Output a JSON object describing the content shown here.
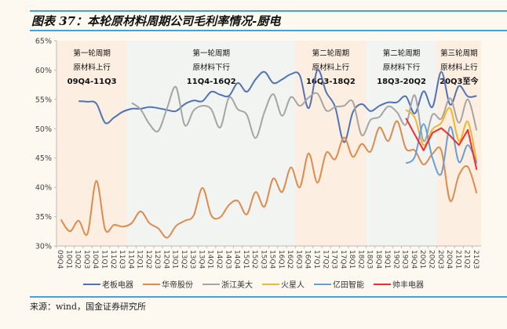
{
  "title": "图表 37：本轮原材料周期公司毛利率情况-厨电",
  "source": "来源：wind，国金证券研究所",
  "colors": {
    "rule": "#3aa6dc",
    "band_up": "#fcefe2",
    "band_down": "#f1f4f0"
  },
  "chart_data": {
    "type": "line",
    "title": "",
    "xlabel": "",
    "ylabel": "",
    "ylim": [
      30,
      65
    ],
    "yticks": [
      "30%",
      "35%",
      "40%",
      "45%",
      "50%",
      "55%",
      "60%",
      "65%"
    ],
    "grid": false,
    "legend": "bottom",
    "categories": [
      "09Q4",
      "10Q1",
      "10Q2",
      "10Q3",
      "10Q4",
      "11Q1",
      "11Q2",
      "11Q3",
      "11Q4",
      "12Q1",
      "12Q2",
      "12Q3",
      "12Q4",
      "13Q1",
      "13Q2",
      "13Q3",
      "13Q4",
      "14Q1",
      "14Q2",
      "14Q3",
      "14Q4",
      "15Q1",
      "15Q2",
      "15Q3",
      "15Q4",
      "16Q1",
      "16Q2",
      "16Q3",
      "16Q4",
      "17Q1",
      "17Q2",
      "17Q3",
      "17Q4",
      "18Q1",
      "18Q2",
      "18Q3",
      "18Q4",
      "19Q1",
      "19Q2",
      "19Q3",
      "19Q4",
      "20Q1",
      "20Q2",
      "20Q3",
      "20Q4",
      "21Q1",
      "21Q2",
      "21Q3"
    ],
    "bands": [
      {
        "lines": [
          "第一轮周期",
          "原材料上行",
          "09Q4-11Q3"
        ],
        "from": "09Q4",
        "to": "11Q3",
        "kind": "up"
      },
      {
        "lines": [
          "第一轮周期",
          "原材料下行",
          "11Q4-16Q2"
        ],
        "from": "11Q4",
        "to": "16Q2",
        "kind": "down"
      },
      {
        "lines": [
          "第二轮周期",
          "原材料上行",
          "16Q3-18Q2"
        ],
        "from": "16Q3",
        "to": "18Q2",
        "kind": "up"
      },
      {
        "lines": [
          "第二轮周期",
          "原材料下行",
          "18Q3-20Q2"
        ],
        "from": "18Q3",
        "to": "20Q2",
        "kind": "down"
      },
      {
        "lines": [
          "第三轮周期",
          "原材料上行",
          "20Q3至今"
        ],
        "from": "20Q3",
        "to": "21Q3",
        "kind": "up"
      }
    ],
    "series": [
      {
        "name": "老板电器",
        "color": "#4f72b8",
        "smooth": true,
        "values": [
          null,
          null,
          54.7,
          54.6,
          54.3,
          51.0,
          51.9,
          52.9,
          53.4,
          53.4,
          53.7,
          53.5,
          53.2,
          53.0,
          54.2,
          54.8,
          54.7,
          56.3,
          55.8,
          55.6,
          57.8,
          56.3,
          58.4,
          59.7,
          57.8,
          58.4,
          59.3,
          59.1,
          53.5,
          60.0,
          56.2,
          53.7,
          47.7,
          52.8,
          54.2,
          53.0,
          53.9,
          54.5,
          54.5,
          55.5,
          52.6,
          56.4,
          53.7,
          59.7,
          54.1,
          57.3,
          55.5,
          55.6
        ]
      },
      {
        "name": "华帝股份",
        "color": "#e08a4c",
        "smooth": true,
        "values": [
          34.5,
          32.5,
          34.3,
          32.1,
          41.1,
          32.8,
          33.6,
          33.3,
          33.9,
          35.9,
          33.9,
          33.0,
          31.4,
          33.4,
          34.3,
          35.2,
          39.9,
          35.2,
          34.9,
          37.0,
          37.7,
          35.4,
          39.2,
          36.7,
          41.5,
          39.2,
          43.4,
          40.0,
          45.8,
          40.8,
          45.9,
          44.8,
          48.5,
          45.2,
          47.4,
          46.1,
          50.2,
          47.9,
          51.3,
          46.6,
          46.3,
          43.9,
          45.7,
          46.3,
          37.7,
          42.1,
          43.5,
          39.0
        ]
      },
      {
        "name": "浙江美大",
        "color": "#a5a5a5",
        "smooth": true,
        "values": [
          null,
          null,
          null,
          null,
          null,
          null,
          null,
          null,
          54.4,
          53.3,
          50.8,
          49.6,
          53.5,
          57.1,
          50.6,
          53.1,
          53.9,
          53.3,
          50.2,
          55.3,
          53.3,
          52.4,
          48.4,
          52.8,
          55.9,
          52.2,
          55.4,
          53.9,
          55.3,
          56.0,
          53.1,
          53.7,
          53.9,
          54.6,
          48.9,
          51.5,
          52.0,
          53.8,
          52.8,
          50.7,
          55.7,
          47.9,
          52.4,
          51.7,
          55.2,
          51.0,
          55.0,
          49.7
        ]
      },
      {
        "name": "火星人",
        "color": "#f2b531",
        "smooth": true,
        "values": [
          null,
          null,
          null,
          null,
          null,
          null,
          null,
          null,
          null,
          null,
          null,
          null,
          null,
          null,
          null,
          null,
          null,
          null,
          null,
          null,
          null,
          null,
          null,
          null,
          null,
          null,
          null,
          null,
          null,
          null,
          null,
          null,
          null,
          null,
          null,
          null,
          null,
          null,
          null,
          53.2,
          51.9,
          47.2,
          49.9,
          51.0,
          53.5,
          47.9,
          51.2,
          44.3
        ]
      },
      {
        "name": "亿田智能",
        "color": "#6a9fd4",
        "smooth": true,
        "values": [
          null,
          null,
          null,
          null,
          null,
          null,
          null,
          null,
          null,
          null,
          null,
          null,
          null,
          null,
          null,
          null,
          null,
          null,
          null,
          null,
          null,
          null,
          null,
          null,
          null,
          null,
          null,
          null,
          null,
          null,
          null,
          null,
          null,
          null,
          null,
          null,
          null,
          null,
          null,
          44.1,
          45.2,
          50.8,
          45.0,
          42.3,
          50.3,
          44.3,
          47.2,
          44.1
        ]
      },
      {
        "name": "帅丰电器",
        "color": "#f42c2c",
        "smooth": false,
        "values": [
          null,
          null,
          null,
          null,
          null,
          null,
          null,
          null,
          null,
          null,
          null,
          null,
          null,
          null,
          null,
          null,
          null,
          null,
          null,
          null,
          null,
          null,
          null,
          null,
          null,
          null,
          null,
          null,
          null,
          null,
          null,
          null,
          null,
          null,
          null,
          null,
          null,
          null,
          null,
          51.8,
          49.0,
          46.3,
          49.3,
          50.1,
          48.8,
          47.2,
          49.8,
          43.0
        ]
      }
    ]
  }
}
